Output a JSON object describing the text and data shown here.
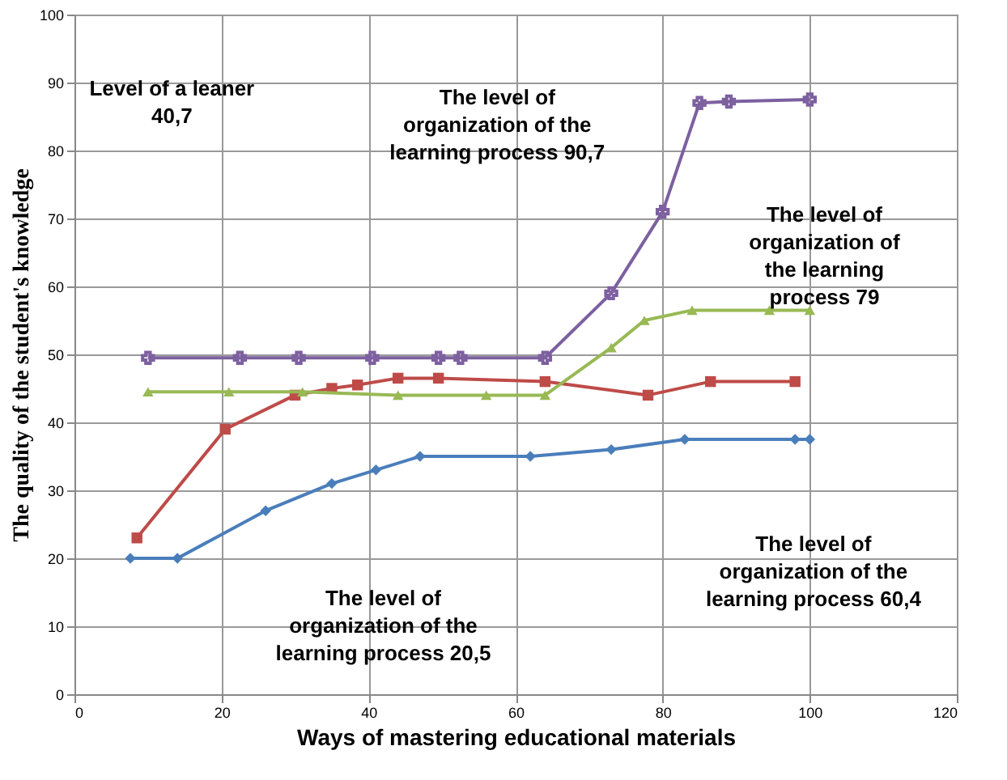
{
  "chart_data": {
    "type": "line",
    "xlabel": "Ways of mastering educational materials",
    "ylabel": "The quality of the student's knowledge",
    "xlim": [
      0,
      120
    ],
    "xticks": [
      0,
      20,
      40,
      60,
      80,
      100,
      120
    ],
    "ylim": [
      0,
      100
    ],
    "yticks": [
      0,
      10,
      20,
      30,
      40,
      50,
      60,
      70,
      80,
      90,
      100
    ],
    "grid": true,
    "line_style": "solid",
    "series": [
      {
        "color": "#4a7ebb",
        "marker": "diamond",
        "x": [
          7.6,
          14,
          26,
          35,
          41,
          47,
          62,
          73,
          83,
          98,
          100
        ],
        "values": [
          20,
          20,
          27,
          31,
          33,
          35,
          35,
          36,
          37.5,
          37.5,
          37.5
        ]
      },
      {
        "color": "#be4b48",
        "marker": "square",
        "x": [
          8.5,
          20.5,
          30,
          35,
          38.5,
          44,
          49.5,
          64,
          78,
          86.5,
          98
        ],
        "values": [
          23,
          39,
          44,
          45,
          45.5,
          46.5,
          46.5,
          46,
          44,
          46,
          46
        ]
      },
      {
        "color": "#98b954",
        "marker": "triangle",
        "x": [
          10,
          21,
          31,
          44,
          56,
          64,
          73,
          77.5,
          84,
          94.5,
          100
        ],
        "values": [
          44.5,
          44.5,
          44.5,
          44,
          44,
          44,
          51,
          55,
          56.5,
          56.5,
          56.5
        ]
      },
      {
        "color": "#7d60a0",
        "marker": "cross",
        "x": [
          10,
          22.5,
          30.5,
          40.5,
          49.5,
          52.5,
          64,
          73,
          80,
          85,
          89,
          100
        ],
        "values": [
          49.5,
          49.5,
          49.5,
          49.5,
          49.5,
          49.5,
          49.5,
          59,
          71,
          87,
          87.2,
          87.5
        ]
      }
    ],
    "annotations": [
      "Level of a leaner 40,7",
      "The level of organization of the learning process 90,7",
      "The level of organization of the learning process 79",
      "The level of organization of the learning process 60,4",
      "The level of organization of the learning process 20,5"
    ]
  }
}
